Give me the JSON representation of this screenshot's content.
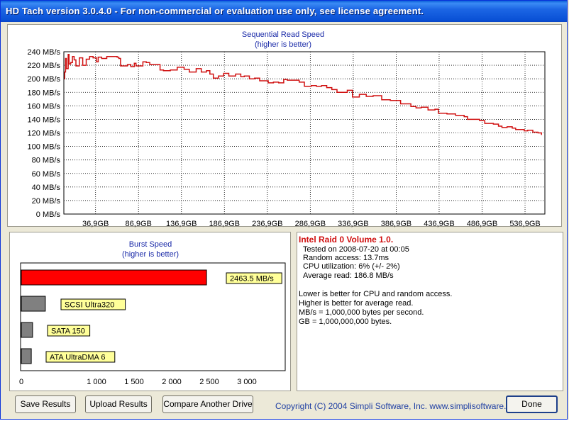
{
  "window": {
    "title": "HD Tach version 3.0.4.0  - For non-commercial or evaluation use only, see license agreement."
  },
  "seq_chart": {
    "title": "Sequential Read Speed",
    "subtitle": "(higher is better)",
    "y_ticks": [
      "240 MB/s",
      "220 MB/s",
      "200 MB/s",
      "180 MB/s",
      "160 MB/s",
      "140 MB/s",
      "120 MB/s",
      "100 MB/s",
      "80 MB/s",
      "60 MB/s",
      "40 MB/s",
      "20 MB/s",
      "0 MB/s"
    ],
    "x_ticks": [
      "36,9GB",
      "86,9GB",
      "136,9GB",
      "186,9GB",
      "236,9GB",
      "286,9GB",
      "336,9GB",
      "386,9GB",
      "436,9GB",
      "486,9GB",
      "536,9GB"
    ],
    "line_color": "#d01010"
  },
  "burst_chart": {
    "title": "Burst Speed",
    "subtitle": "(higher is better)",
    "x_ticks": [
      "0",
      "1 000",
      "1 500",
      "2 000",
      "2 500",
      "3 000"
    ],
    "bars": [
      {
        "label": "2463.5 MB/s",
        "value": 2463.5,
        "color": "#ff0000"
      },
      {
        "label": "SCSI Ultra320",
        "value": 320,
        "color": "#808080"
      },
      {
        "label": "SATA 150",
        "value": 150,
        "color": "#808080"
      },
      {
        "label": "ATA UltraDMA 6",
        "value": 133,
        "color": "#808080"
      }
    ],
    "label_bg": "#ffff99"
  },
  "info": {
    "drive_name": "Intel Raid 0 Volume 1.0.",
    "tested_on": "Tested on 2008-07-20 at 00:05",
    "random_access": "Random access: 13.7ms",
    "cpu_utilization": "CPU utilization: 6% (+/- 2%)",
    "average_read": "Average read: 186.8 MB/s",
    "note_1": "Lower is better for CPU and random access.",
    "note_2": "Higher is better for average read.",
    "note_3": "MB/s = 1,000,000 bytes per second.",
    "note_4": "GB = 1,000,000,000 bytes."
  },
  "buttons": {
    "save": "Save Results",
    "upload": "Upload Results",
    "compare": "Compare Another Drive",
    "done": "Done"
  },
  "footer": {
    "copyright": "Copyright (C) 2004 Simpli Software, Inc. www.simplisoftware.com"
  },
  "chart_data": [
    {
      "type": "line",
      "title": "Sequential Read Speed",
      "subtitle": "(higher is better)",
      "xlabel": "",
      "ylabel": "",
      "ylim": [
        0,
        240
      ],
      "xlim": [
        0,
        560
      ],
      "x_unit": "GB",
      "y_unit": "MB/s",
      "grid": true,
      "x": [
        0,
        1,
        2,
        3,
        5,
        6,
        8,
        10,
        12,
        14,
        18,
        22,
        26,
        30,
        34,
        38,
        40,
        44,
        50,
        58,
        62,
        64,
        66,
        74,
        78,
        82,
        84,
        92,
        96,
        100,
        106,
        112,
        116,
        124,
        132,
        140,
        146,
        154,
        160,
        166,
        170,
        174,
        180,
        186,
        192,
        200,
        206,
        210,
        216,
        222,
        228,
        232,
        238,
        244,
        250,
        256,
        260,
        268,
        274,
        280,
        288,
        294,
        300,
        306,
        312,
        318,
        324,
        330,
        336,
        344,
        352,
        360,
        370,
        380,
        392,
        398,
        404,
        410,
        416,
        424,
        432,
        436,
        446,
        456,
        466,
        470,
        478,
        484,
        490,
        500,
        506,
        510,
        516,
        522,
        526,
        532,
        536,
        540,
        546,
        552,
        556
      ],
      "y": [
        200,
        210,
        230,
        215,
        236,
        222,
        224,
        233,
        228,
        219,
        231,
        220,
        229,
        233,
        231,
        225,
        232,
        230,
        233,
        233,
        232,
        230,
        219,
        221,
        218,
        223,
        219,
        225,
        224,
        221,
        221,
        213,
        212,
        213,
        217,
        214,
        210,
        215,
        210,
        212,
        207,
        201,
        204,
        208,
        204,
        207,
        203,
        204,
        200,
        201,
        197,
        197,
        194,
        195,
        194,
        199,
        198,
        198,
        195,
        189,
        190,
        189,
        190,
        187,
        184,
        180,
        180,
        183,
        173,
        177,
        174,
        175,
        169,
        168,
        163,
        163,
        159,
        157,
        158,
        154,
        155,
        149,
        148,
        146,
        144,
        140,
        140,
        138,
        134,
        133,
        130,
        128,
        129,
        127,
        125,
        125,
        123,
        124,
        121,
        120,
        117
      ]
    },
    {
      "type": "bar",
      "title": "Burst Speed",
      "subtitle": "(higher is better)",
      "categories": [
        "Intel Raid 0 Volume 1.0.",
        "SCSI Ultra320",
        "SATA 150",
        "ATA UltraDMA 6"
      ],
      "values": [
        2463.5,
        320,
        150,
        133
      ],
      "xlim": [
        0,
        3500
      ],
      "orientation": "horizontal"
    }
  ]
}
